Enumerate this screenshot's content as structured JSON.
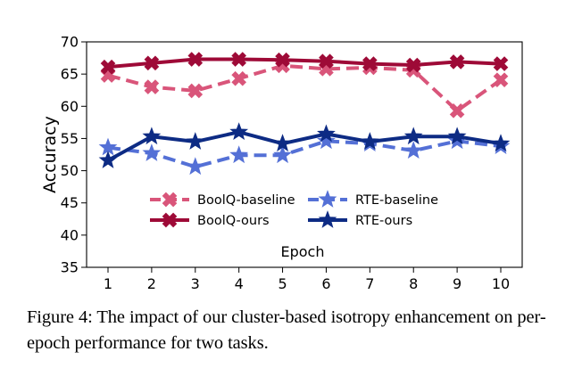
{
  "chart_data": {
    "type": "line",
    "title": "",
    "xlabel": "Epoch",
    "ylabel": "Accuracy",
    "x": [
      1,
      2,
      3,
      4,
      5,
      6,
      7,
      8,
      9,
      10
    ],
    "xlim": [
      1,
      10
    ],
    "ylim": [
      35,
      70
    ],
    "yticks": [
      35,
      40,
      45,
      50,
      55,
      60,
      65,
      70
    ],
    "xticks": [
      1,
      2,
      3,
      4,
      5,
      6,
      7,
      8,
      9,
      10
    ],
    "grid": false,
    "legend_position": "center",
    "series": [
      {
        "name": "BoolQ-baseline",
        "color": "#d9557a",
        "line_style": "dashed",
        "marker": "x",
        "values": [
          64.8,
          63.0,
          62.4,
          64.3,
          66.3,
          65.8,
          66.0,
          65.6,
          59.3,
          64.1
        ]
      },
      {
        "name": "BoolQ-ours",
        "color": "#9e0a37",
        "line_style": "solid",
        "marker": "x",
        "values": [
          66.1,
          66.7,
          67.3,
          67.3,
          67.2,
          67.0,
          66.6,
          66.4,
          66.9,
          66.6
        ]
      },
      {
        "name": "RTE-baseline",
        "color": "#5470d6",
        "line_style": "dashed",
        "marker": "star",
        "values": [
          53.6,
          52.7,
          50.6,
          52.4,
          52.4,
          54.6,
          54.2,
          53.1,
          54.6,
          53.8
        ]
      },
      {
        "name": "RTE-ours",
        "color": "#0d2b84",
        "line_style": "solid",
        "marker": "star",
        "values": [
          51.6,
          55.3,
          54.5,
          56.0,
          54.2,
          55.7,
          54.5,
          55.3,
          55.3,
          54.2
        ]
      }
    ]
  },
  "caption": "Figure 4: The impact of our cluster-based isotropy enhancement on per-epoch performance for two tasks."
}
